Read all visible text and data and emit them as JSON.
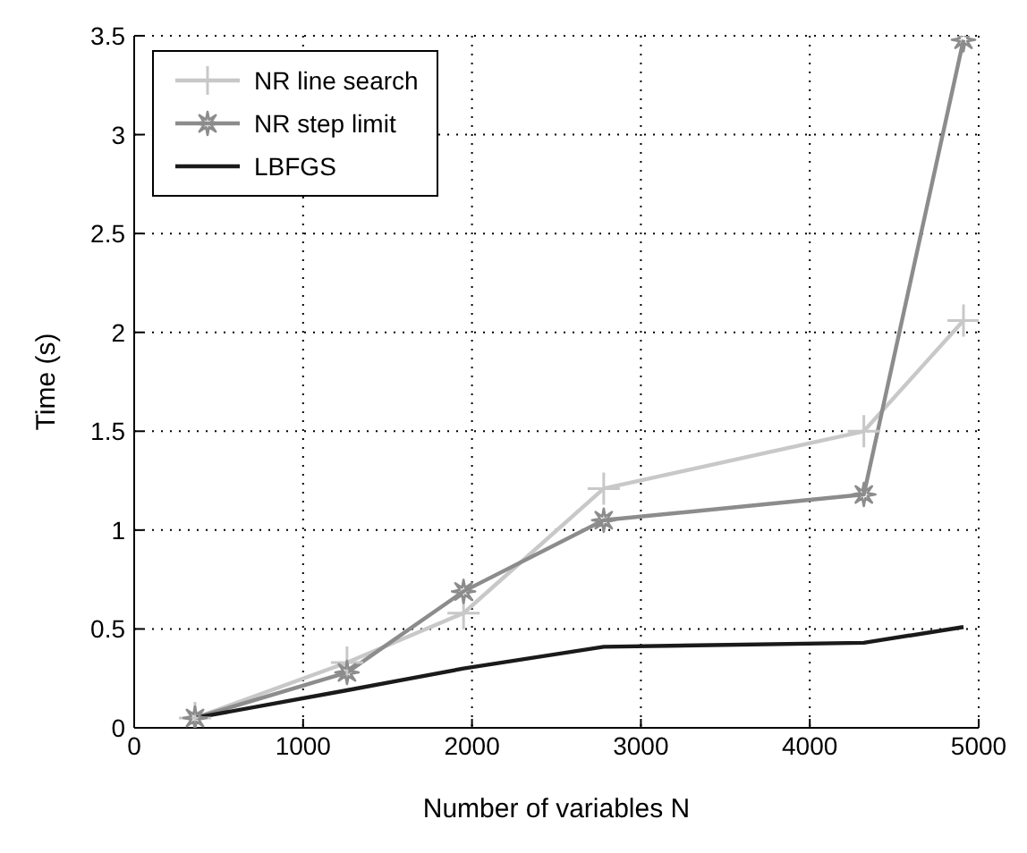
{
  "chart_data": {
    "type": "line",
    "xlabel": "Number of variables N",
    "ylabel": "Time (s)",
    "x": [
      360,
      1260,
      1950,
      2780,
      4320,
      4910
    ],
    "series": [
      {
        "name": "NR line search",
        "color": "#c8c8c8",
        "marker": "cross",
        "values": [
          0.05,
          0.33,
          0.58,
          1.21,
          1.5,
          2.06
        ]
      },
      {
        "name": "NR step limit",
        "color": "#8c8c8c",
        "marker": "star",
        "values": [
          0.05,
          0.28,
          0.69,
          1.05,
          1.18,
          3.48
        ]
      },
      {
        "name": "LBFGS",
        "color": "#1a1a1a",
        "marker": "none",
        "values": [
          0.05,
          0.19,
          0.3,
          0.41,
          0.43,
          0.51
        ]
      }
    ],
    "xlim": [
      0,
      5000
    ],
    "xticks": [
      0,
      1000,
      2000,
      3000,
      4000,
      5000
    ],
    "ylim": [
      0,
      3.5
    ],
    "yticks": [
      0,
      0.5,
      1,
      1.5,
      2,
      2.5,
      3,
      3.5
    ],
    "grid": true,
    "legend": "top left",
    "line_style": "solid"
  }
}
